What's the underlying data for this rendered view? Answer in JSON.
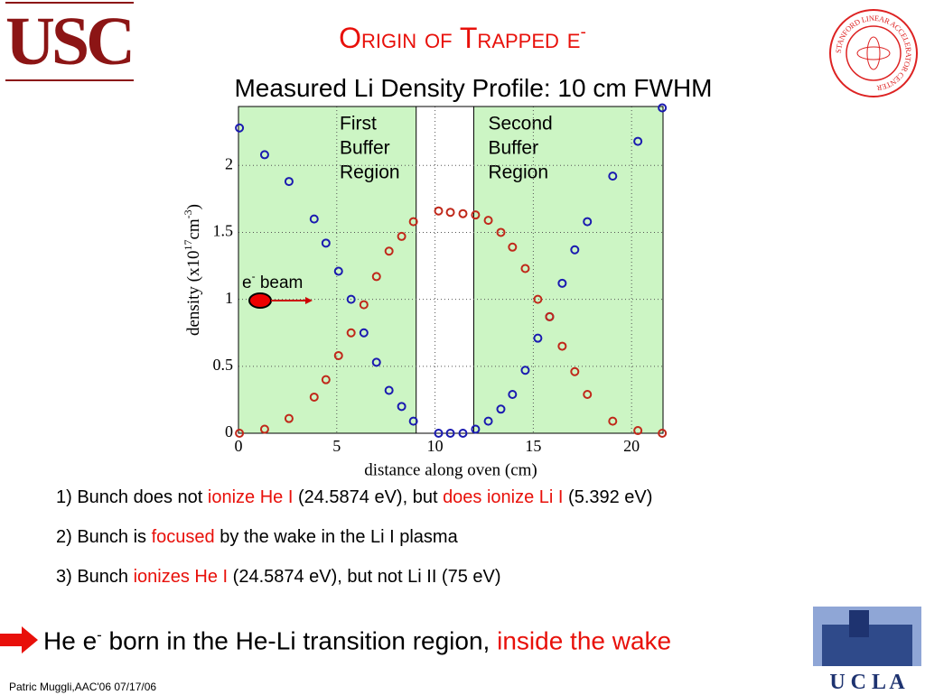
{
  "header": {
    "logo": "USC",
    "title": "Origin of Trapped e",
    "title_sup": "-",
    "subtitle": "Measured Li Density Profile: 10 cm FWHM",
    "seal": "STANFORD LINEAR ACCELERATOR CENTER"
  },
  "chart_data": {
    "type": "scatter",
    "xlabel": "distance along oven (cm)",
    "ylabel_parts": [
      "density (x10",
      "17",
      "cm",
      "-3",
      ")"
    ],
    "xlim": [
      0,
      21.6
    ],
    "ylim": [
      0,
      2.44
    ],
    "xticks": [
      0,
      5,
      10,
      15,
      20
    ],
    "yticks": [
      0,
      0.5,
      1,
      1.5,
      2
    ],
    "grid": true,
    "background": "#ccf5c4",
    "regions": [
      {
        "lines": [
          "First",
          "Buffer",
          "Region"
        ],
        "start": 0,
        "end": 9.04
      },
      {
        "lines": [
          "Second",
          "Buffer",
          "Region"
        ],
        "start": 11.97,
        "end": 21.6
      }
    ],
    "annotation": {
      "text": "e",
      "sup": "-",
      "rest": " beam"
    },
    "x": [
      0.05,
      1.33,
      2.57,
      3.85,
      4.45,
      5.09,
      5.73,
      6.38,
      7.02,
      7.66,
      8.3,
      8.9,
      10.18,
      10.78,
      11.42,
      12.06,
      12.71,
      13.35,
      13.94,
      14.59,
      15.23,
      15.83,
      16.47,
      17.11,
      17.75,
      19.04,
      20.32,
      21.56
    ],
    "series": [
      {
        "color": "#1a1ab0",
        "values": [
          2.28,
          2.08,
          1.88,
          1.6,
          1.42,
          1.21,
          1.0,
          0.75,
          0.53,
          0.32,
          0.2,
          0.09,
          0,
          0,
          0,
          0.03,
          0.09,
          0.18,
          0.29,
          0.47,
          0.71,
          0.87,
          1.12,
          1.37,
          1.58,
          1.92,
          2.18,
          2.43
        ]
      },
      {
        "color": "#c0281a",
        "values": [
          0,
          0.03,
          0.11,
          0.27,
          0.4,
          0.58,
          0.75,
          0.96,
          1.17,
          1.36,
          1.47,
          1.58,
          1.66,
          1.65,
          1.64,
          1.63,
          1.59,
          1.5,
          1.39,
          1.23,
          1.0,
          0.87,
          0.65,
          0.46,
          0.29,
          0.09,
          0.02,
          0
        ]
      }
    ]
  },
  "bullets": [
    [
      {
        "text": "1) Bunch does not "
      },
      {
        "text": "ionize He I",
        "color": "#e8100a"
      },
      {
        "text": " (24.5874 eV), but "
      },
      {
        "text": "does ionize Li I",
        "color": "#e8100a"
      },
      {
        "text": " (5.392 eV)"
      }
    ],
    [
      {
        "text": "2) Bunch is "
      },
      {
        "text": "focused",
        "color": "#e8100a"
      },
      {
        "text": " by the wake in the Li I plasma"
      }
    ],
    [
      {
        "text": "3) Bunch "
      },
      {
        "text": "ionizes He I",
        "color": "#e8100a"
      },
      {
        "text": " (24.5874 eV), but not Li II (75 eV)"
      }
    ]
  ],
  "conclusion": [
    {
      "text": "He e"
    },
    {
      "text": "-",
      "sup": true
    },
    {
      "text": " born in the He-Li transition region, "
    },
    {
      "text": "inside the wake",
      "color": "#e8100a"
    }
  ],
  "footer": "Patric Muggli,AAC'06 07/17/06",
  "ucla": "U C L A"
}
